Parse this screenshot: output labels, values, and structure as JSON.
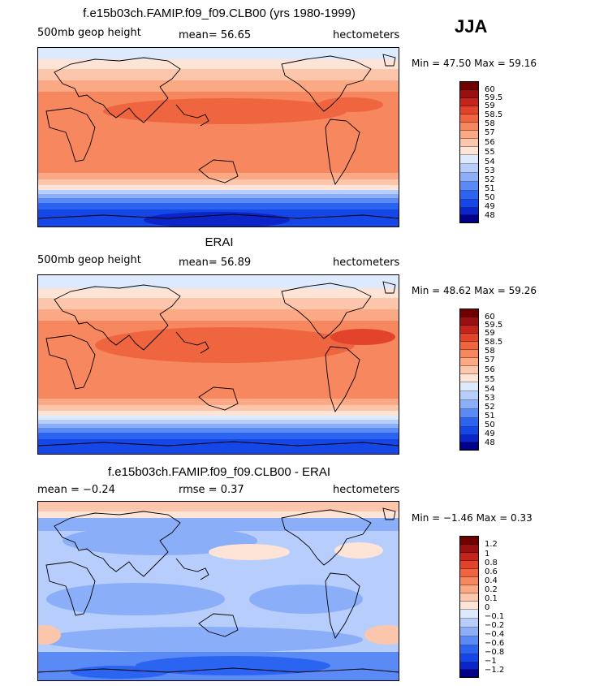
{
  "season_label": "JJA",
  "units_label": "hectometers",
  "land_color": "#000000",
  "panels": [
    {
      "title": "f.e15b03ch.FAMIP.f09_f09.CLB00 (yrs 1980-1999)",
      "left_label": "500mb geop height",
      "stat_text": "mean=  56.65",
      "units": "hectometers",
      "minmax_text": "Min =  47.50 Max =  59.16",
      "colorbar_colors": [
        "#00008b",
        "#0b25c8",
        "#1546e6",
        "#2a64f0",
        "#5a8af5",
        "#8aaef8",
        "#b7cdfb",
        "#ddeafd",
        "#fde4d6",
        "#fcc6ad",
        "#fba884",
        "#f6875e",
        "#ee6540",
        "#e1442a",
        "#c3251b",
        "#9a0f12",
        "#700000"
      ],
      "colorbar_labels": [
        "48",
        "49",
        "50",
        "51",
        "52",
        "53",
        "54",
        "55",
        "56",
        "57",
        "58",
        "58.5",
        "59",
        "59.5",
        "60"
      ]
    },
    {
      "title": "ERAI",
      "left_label": "500mb geop height",
      "stat_text": "mean=  56.89",
      "units": "hectometers",
      "minmax_text": "Min =  48.62 Max =  59.26",
      "colorbar_colors": [
        "#00008b",
        "#0b25c8",
        "#1546e6",
        "#2a64f0",
        "#5a8af5",
        "#8aaef8",
        "#b7cdfb",
        "#ddeafd",
        "#fde4d6",
        "#fcc6ad",
        "#fba884",
        "#f6875e",
        "#ee6540",
        "#e1442a",
        "#c3251b",
        "#9a0f12",
        "#700000"
      ],
      "colorbar_labels": [
        "48",
        "49",
        "50",
        "51",
        "52",
        "53",
        "54",
        "55",
        "56",
        "57",
        "58",
        "58.5",
        "59",
        "59.5",
        "60"
      ]
    },
    {
      "title": "f.e15b03ch.FAMIP.f09_f09.CLB00 - ERAI",
      "left_label": "mean =  −0.24",
      "stat_text": "rmse =   0.37",
      "units": "hectometers",
      "minmax_text": "Min =  −1.46 Max =   0.33",
      "colorbar_colors": [
        "#00008b",
        "#0b25c8",
        "#1546e6",
        "#2a64f0",
        "#5a8af5",
        "#8aaef8",
        "#b7cdfb",
        "#ddeafd",
        "#fde4d6",
        "#fcc6ad",
        "#fba884",
        "#f6875e",
        "#ee6540",
        "#e1442a",
        "#c3251b",
        "#9a0f12",
        "#700000"
      ],
      "colorbar_labels": [
        "−1.2",
        "−1",
        "−0.8",
        "−0.6",
        "−0.4",
        "−0.2",
        "−0.1",
        "0",
        "0.1",
        "0.2",
        "0.4",
        "0.6",
        "0.8",
        "1",
        "1.2"
      ]
    }
  ]
}
